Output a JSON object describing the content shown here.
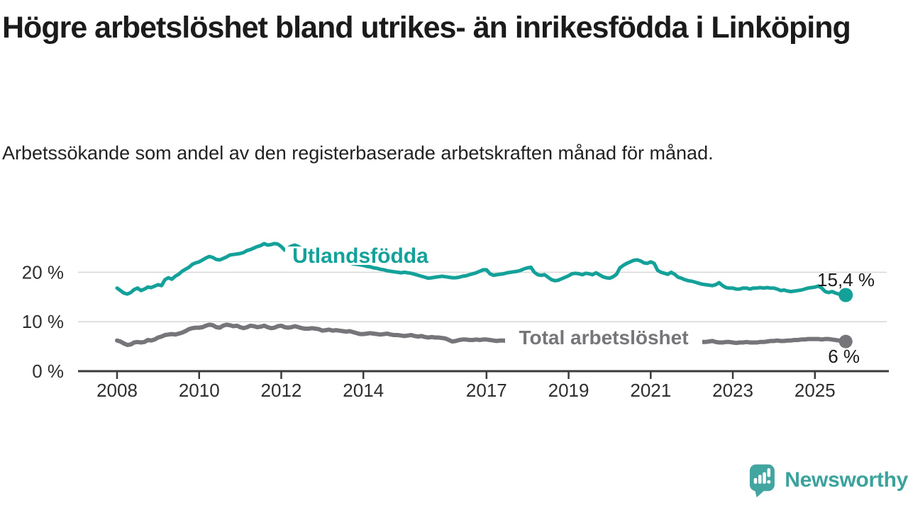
{
  "page": {
    "background": "#ffffff"
  },
  "header": {
    "title": "Högre arbetslöshet bland utrikes- än inrikesfödda i Linköping",
    "subtitle": "Arbetssökande som andel av den registerbaserade arbetskraften månad för månad."
  },
  "branding": {
    "logo_text": "Newsworthy",
    "logo_color": "#43a5a0",
    "logo_icon": "speech-bubble-with-bar-chart-and-exclamation"
  },
  "chart_data": {
    "type": "line",
    "frequency": "monthly",
    "x_start": "2008-01",
    "x_end": "2025-10",
    "grid": "horizontal",
    "ylim": [
      0,
      27.5
    ],
    "y_ticks": [
      {
        "value": 0,
        "label": "0 %"
      },
      {
        "value": 10,
        "label": "10 %"
      },
      {
        "value": 20,
        "label": "20 %"
      }
    ],
    "x_ticks": [
      {
        "value": 2008,
        "label": "2008"
      },
      {
        "value": 2010,
        "label": "2010"
      },
      {
        "value": 2012,
        "label": "2012"
      },
      {
        "value": 2014,
        "label": "2014"
      },
      {
        "value": 2017,
        "label": "2017"
      },
      {
        "value": 2019,
        "label": "2019"
      },
      {
        "value": 2021,
        "label": "2021"
      },
      {
        "value": 2023,
        "label": "2023"
      },
      {
        "value": 2025,
        "label": "2025"
      }
    ],
    "series": [
      {
        "name": "Utlandsfödda",
        "color": "#14a19a",
        "final_value": 15.4,
        "end_value_label": "15,4 %",
        "values": [
          16.8,
          16.3,
          15.8,
          15.6,
          15.9,
          16.5,
          16.8,
          16.3,
          16.6,
          17.0,
          16.9,
          17.2,
          17.5,
          17.3,
          18.5,
          18.9,
          18.6,
          19.2,
          19.6,
          20.2,
          20.6,
          21.0,
          21.6,
          21.9,
          22.1,
          22.5,
          22.9,
          23.2,
          23.0,
          22.6,
          22.5,
          22.8,
          23.1,
          23.5,
          23.6,
          23.7,
          23.8,
          24.0,
          24.4,
          24.6,
          24.9,
          25.2,
          25.4,
          25.8,
          25.5,
          25.6,
          25.8,
          25.7,
          25.2,
          24.5,
          24.9,
          25.3,
          25.5,
          25.2,
          24.8,
          24.4,
          24.1,
          23.9,
          23.7,
          23.5,
          23.2,
          23.0,
          22.8,
          22.6,
          22.5,
          22.3,
          22.2,
          22.0,
          21.9,
          21.7,
          21.6,
          21.5,
          21.4,
          21.2,
          21.1,
          20.9,
          20.8,
          20.6,
          20.5,
          20.3,
          20.2,
          20.1,
          20.0,
          19.9,
          20.0,
          19.9,
          19.8,
          19.6,
          19.4,
          19.2,
          19.0,
          18.8,
          18.9,
          19.0,
          19.1,
          19.2,
          19.1,
          19.0,
          18.9,
          18.9,
          19.0,
          19.2,
          19.3,
          19.5,
          19.7,
          19.9,
          20.2,
          20.5,
          20.5,
          19.7,
          19.4,
          19.5,
          19.6,
          19.7,
          19.9,
          20.0,
          20.1,
          20.2,
          20.4,
          20.7,
          20.9,
          21.0,
          20.0,
          19.5,
          19.4,
          19.5,
          19.0,
          18.5,
          18.3,
          18.4,
          18.7,
          19.0,
          19.3,
          19.7,
          19.8,
          19.7,
          19.5,
          19.8,
          19.7,
          19.5,
          19.9,
          19.5,
          19.1,
          18.9,
          18.8,
          19.1,
          19.6,
          20.9,
          21.4,
          21.8,
          22.1,
          22.4,
          22.5,
          22.3,
          21.9,
          21.8,
          22.1,
          21.8,
          20.4,
          20.0,
          19.8,
          19.6,
          20.0,
          19.6,
          19.0,
          18.8,
          18.5,
          18.3,
          18.2,
          18.0,
          17.8,
          17.6,
          17.5,
          17.4,
          17.3,
          17.5,
          17.9,
          17.3,
          16.9,
          16.8,
          16.8,
          16.6,
          16.6,
          16.8,
          16.8,
          16.6,
          16.8,
          16.8,
          16.9,
          16.8,
          16.9,
          16.8,
          16.8,
          16.6,
          16.3,
          16.4,
          16.2,
          16.1,
          16.2,
          16.3,
          16.4,
          16.6,
          16.8,
          16.9,
          17.0,
          17.2,
          16.8,
          16.1,
          15.9,
          16.1,
          15.8,
          15.6,
          15.2,
          15.4
        ]
      },
      {
        "name": "Total arbetslöshet",
        "color": "#76767a",
        "final_value": 6,
        "end_value_label": "6 %",
        "values": [
          6.2,
          6.0,
          5.6,
          5.3,
          5.4,
          5.8,
          5.9,
          5.8,
          5.9,
          6.3,
          6.2,
          6.4,
          6.8,
          7.0,
          7.3,
          7.4,
          7.5,
          7.4,
          7.6,
          7.8,
          8.1,
          8.5,
          8.7,
          8.8,
          8.8,
          8.9,
          9.2,
          9.4,
          9.3,
          8.9,
          8.8,
          9.2,
          9.4,
          9.3,
          9.1,
          9.2,
          8.9,
          8.7,
          8.9,
          9.2,
          9.1,
          8.9,
          9.0,
          9.2,
          8.9,
          8.7,
          8.8,
          9.1,
          9.2,
          8.9,
          8.8,
          8.9,
          9.1,
          8.9,
          8.7,
          8.6,
          8.6,
          8.7,
          8.6,
          8.5,
          8.2,
          8.3,
          8.4,
          8.2,
          8.3,
          8.2,
          8.1,
          8.0,
          8.1,
          7.9,
          7.7,
          7.5,
          7.5,
          7.6,
          7.7,
          7.6,
          7.5,
          7.4,
          7.5,
          7.6,
          7.4,
          7.3,
          7.3,
          7.2,
          7.1,
          7.2,
          7.3,
          7.1,
          7.0,
          7.1,
          6.9,
          6.8,
          6.9,
          6.8,
          6.8,
          6.7,
          6.6,
          6.3,
          6.0,
          6.1,
          6.3,
          6.4,
          6.4,
          6.3,
          6.3,
          6.4,
          6.3,
          6.4,
          6.4,
          6.3,
          6.2,
          6.1,
          6.2,
          6.2,
          6.1,
          6.0,
          6.1,
          6.0,
          6.0,
          6.1,
          6.0,
          5.9,
          5.8,
          5.7,
          5.7,
          5.8,
          5.7,
          5.6,
          5.7,
          5.6,
          5.7,
          5.8,
          5.8,
          5.9,
          5.9,
          5.8,
          5.9,
          6.0,
          6.1,
          6.0,
          6.1,
          6.2,
          6.1,
          6.2,
          6.3,
          6.5,
          7.0,
          7.5,
          7.8,
          7.8,
          7.7,
          7.6,
          7.5,
          7.4,
          7.3,
          7.2,
          7.1,
          7.0,
          6.9,
          6.8,
          6.7,
          6.6,
          6.5,
          6.4,
          6.3,
          6.2,
          6.1,
          6.1,
          6.1,
          6.0,
          6.0,
          5.9,
          5.9,
          6.0,
          6.1,
          5.9,
          5.8,
          5.8,
          5.9,
          5.9,
          5.8,
          5.7,
          5.8,
          5.8,
          5.9,
          5.8,
          5.8,
          5.8,
          5.9,
          5.9,
          6.0,
          6.1,
          6.1,
          6.2,
          6.1,
          6.1,
          6.2,
          6.2,
          6.3,
          6.3,
          6.4,
          6.4,
          6.5,
          6.5,
          6.5,
          6.5,
          6.4,
          6.5,
          6.5,
          6.4,
          6.3,
          6.2,
          6.1,
          6.0
        ]
      }
    ]
  }
}
